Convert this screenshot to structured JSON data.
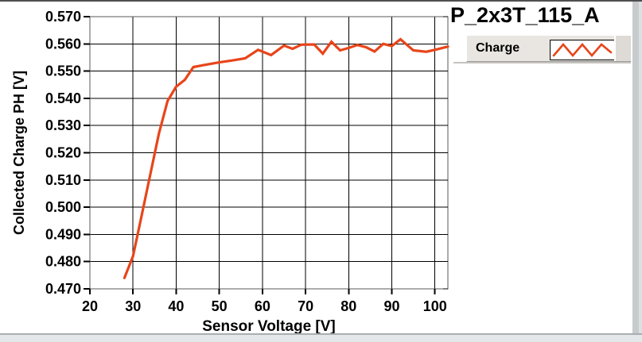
{
  "chart_data": {
    "type": "line",
    "title": "P_2x3T_115_A",
    "xlabel": "Sensor Voltage [V]",
    "ylabel": "Collected Charge PH [V]",
    "xlim": [
      20,
      103
    ],
    "ylim": [
      0.47,
      0.57
    ],
    "x_ticks": [
      20,
      30,
      40,
      50,
      60,
      70,
      80,
      90,
      100
    ],
    "y_ticks": [
      0.47,
      0.48,
      0.49,
      0.5,
      0.51,
      0.52,
      0.53,
      0.54,
      0.55,
      0.56,
      0.57
    ],
    "y_tick_decimals": 3,
    "grid": true,
    "legend": {
      "label": "Charge",
      "position": "top-right"
    },
    "series": [
      {
        "name": "Charge",
        "color": "#e8451a",
        "points": [
          [
            28,
            0.474
          ],
          [
            30,
            0.482
          ],
          [
            32,
            0.497
          ],
          [
            34,
            0.512
          ],
          [
            36,
            0.527
          ],
          [
            38,
            0.539
          ],
          [
            40,
            0.5443
          ],
          [
            42,
            0.5468
          ],
          [
            44,
            0.5515
          ],
          [
            47,
            0.5524
          ],
          [
            50,
            0.5532
          ],
          [
            53,
            0.5539
          ],
          [
            56,
            0.5547
          ],
          [
            59,
            0.5578
          ],
          [
            62,
            0.5559
          ],
          [
            65,
            0.5594
          ],
          [
            67,
            0.5582
          ],
          [
            69,
            0.5597
          ],
          [
            72,
            0.5598
          ],
          [
            74,
            0.5564
          ],
          [
            76,
            0.5608
          ],
          [
            78,
            0.5576
          ],
          [
            80,
            0.5585
          ],
          [
            82,
            0.5596
          ],
          [
            84,
            0.5588
          ],
          [
            86,
            0.5572
          ],
          [
            88,
            0.56
          ],
          [
            90,
            0.5592
          ],
          [
            92,
            0.5617
          ],
          [
            95,
            0.5576
          ],
          [
            98,
            0.5571
          ],
          [
            100,
            0.5578
          ],
          [
            103,
            0.559
          ]
        ]
      }
    ]
  },
  "colors": {
    "curve": "#e8451a",
    "grid": "#000000",
    "frame": "#5a5a5a",
    "plot_bg": "#ffffff",
    "text": "#000000",
    "legend_bg": "#e9e6e2"
  }
}
